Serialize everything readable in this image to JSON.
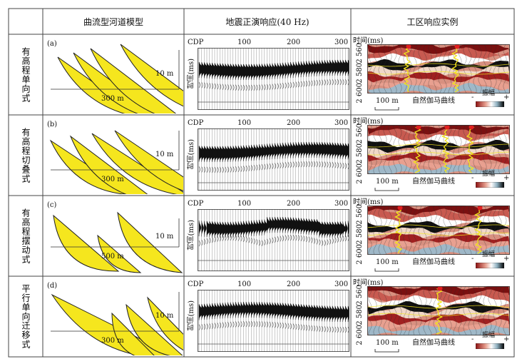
{
  "headers": {
    "model": "曲流型河道模型",
    "synthetic": "地震正演响应(40 Hz)",
    "field": "工区响应实例"
  },
  "rows": [
    {
      "label": "有高程单向式",
      "panel": "(a)",
      "thickness": "10 m",
      "width": "300 m",
      "cdp": "CDP",
      "cdp_ticks": [
        "100",
        "200",
        "300"
      ],
      "time_label": "时间(ms)",
      "time_label_field": "时间(ms)",
      "depth_ticks": [
        "2 560",
        "2 580",
        "2 600"
      ],
      "scale": "100 m",
      "gamma": "自然伽马曲线",
      "amp": "振幅",
      "minus": "-",
      "plus": "+"
    },
    {
      "label": "有高程切叠式",
      "panel": "(b)",
      "thickness": "10 m",
      "width": "300 m",
      "cdp": "CDP",
      "cdp_ticks": [
        "100",
        "200",
        "300"
      ],
      "time_label": "时间(ms)",
      "time_label_field": "时间(ms)",
      "depth_ticks": [
        "2 560",
        "2 580",
        "2 600"
      ],
      "scale": "100 m",
      "gamma": "自然伽马曲线",
      "amp": "振幅",
      "minus": "-",
      "plus": "+"
    },
    {
      "label": "有高程摆动式",
      "panel": "(c)",
      "thickness": "10 m",
      "width": "500 m",
      "cdp": "CDP",
      "cdp_ticks": [
        "100",
        "200",
        "300"
      ],
      "time_label": "时间(ms)",
      "time_label_field": "时间(ms)",
      "depth_ticks": [
        "2 560",
        "2 580",
        "2 600"
      ],
      "scale": "100 m",
      "gamma": "自然伽马曲线",
      "amp": "振幅",
      "minus": "-",
      "plus": "+"
    },
    {
      "label": "平行单向迁移式",
      "panel": "(d)",
      "thickness": "10 m",
      "width": "300 m",
      "cdp": "CDP",
      "cdp_ticks": [
        "100",
        "200",
        "300"
      ],
      "time_label": "时间(ms)",
      "time_label_field": "时间(ms)",
      "depth_ticks": [
        "2 560",
        "2 580",
        "2 600"
      ],
      "scale": "100 m",
      "gamma": "自然伽马曲线",
      "amp": "振幅",
      "minus": "-",
      "plus": "+"
    }
  ],
  "colors": {
    "sand": "#f5e61e",
    "outline": "#222222",
    "grid": "#444444",
    "well_marker": "#e02020",
    "gamma_curve": "#f2e41a"
  }
}
